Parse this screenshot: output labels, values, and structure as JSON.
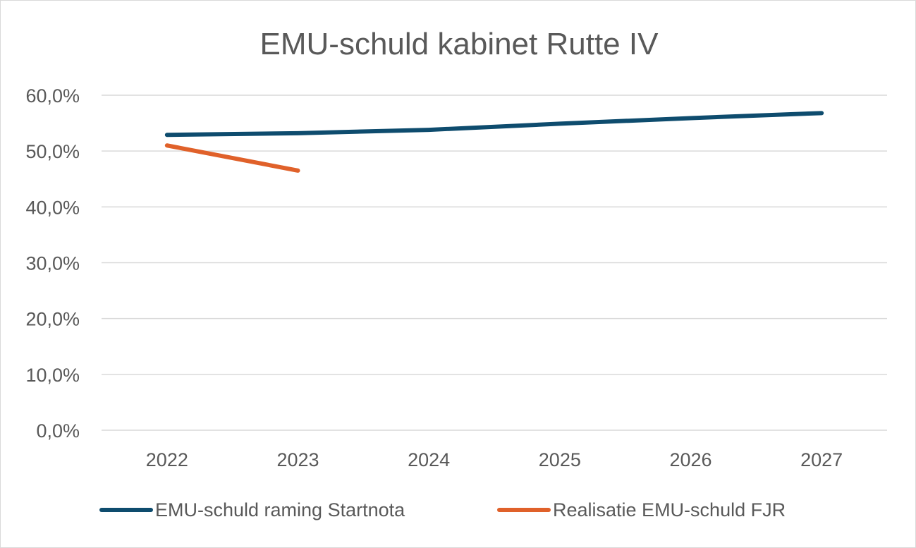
{
  "chart_data": {
    "type": "line",
    "title": "EMU-schuld kabinet Rutte IV",
    "categories": [
      "2022",
      "2023",
      "2024",
      "2025",
      "2026",
      "2027"
    ],
    "ylim": [
      0,
      60
    ],
    "yticks": [
      "0,0%",
      "10,0%",
      "20,0%",
      "30,0%",
      "40,0%",
      "50,0%",
      "60,0%"
    ],
    "grid": true,
    "legend_position": "bottom",
    "series": [
      {
        "name": "EMU-schuld raming Startnota",
        "color": "#0e4c6e",
        "values": [
          52.9,
          53.2,
          53.8,
          54.9,
          55.9,
          56.8
        ]
      },
      {
        "name": "Realisatie EMU-schuld FJR",
        "color": "#e0612a",
        "values": [
          51.0,
          46.5,
          null,
          null,
          null,
          null
        ]
      }
    ]
  }
}
